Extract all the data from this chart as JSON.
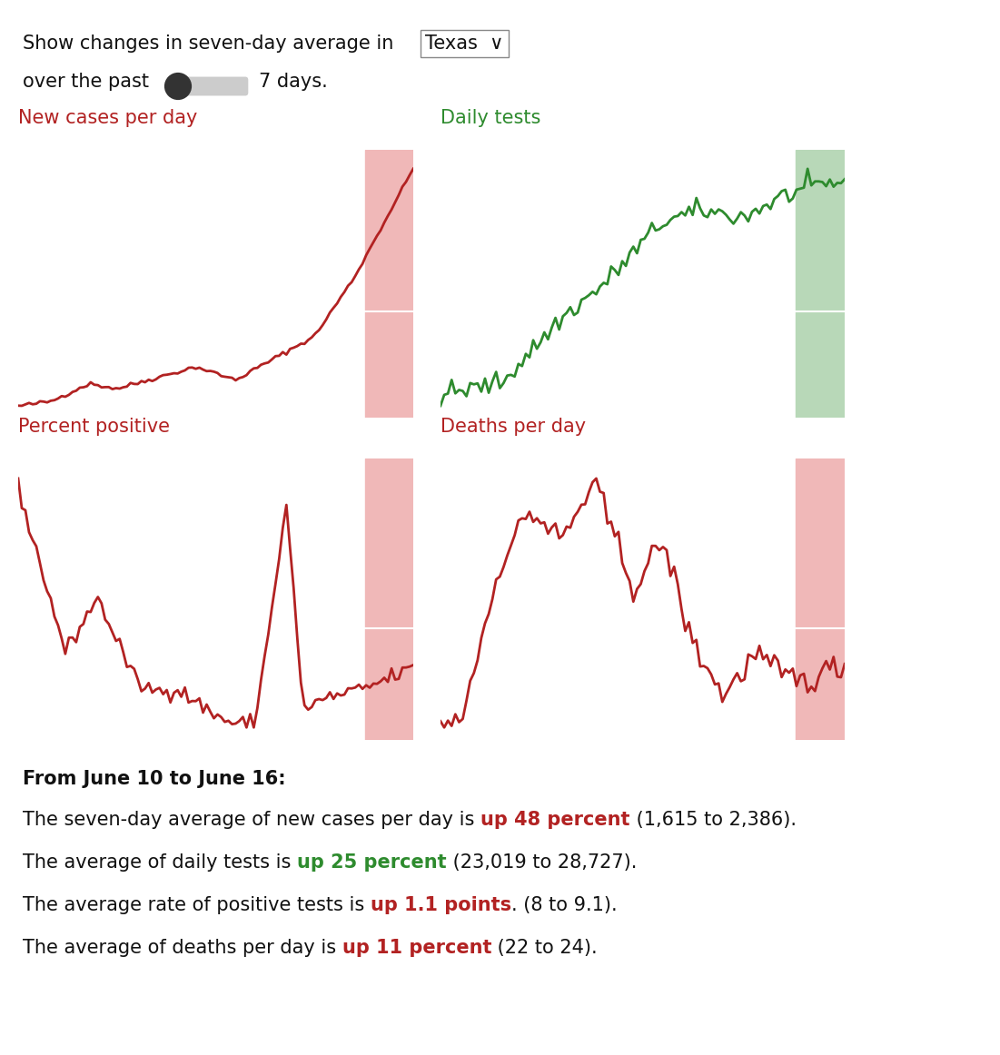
{
  "title_line1": "Show changes in seven-day average in",
  "state": "Texas",
  "slider_text": "over the past",
  "days_text": "7 days.",
  "chart_titles": [
    "New cases per day",
    "Daily tests",
    "Percent positive",
    "Deaths per day"
  ],
  "chart_colors": [
    "#b22222",
    "#2e8b2e",
    "#b22222",
    "#b22222"
  ],
  "chart_bg_colors": [
    "#fad4d4",
    "#d4ead4",
    "#fad4d4",
    "#fad4d4"
  ],
  "chart_highlight_colors": [
    "#f0b8b8",
    "#b8d8b8",
    "#f0b8b8",
    "#f0b8b8"
  ],
  "from_date": "From June 10 to June 16:",
  "stat_lines": [
    {
      "prefix": "The seven-day average of new cases per day is ",
      "highlight": "up 48 percent",
      "suffix": " (1,615 to 2,386).",
      "highlight_color": "#b22222"
    },
    {
      "prefix": "The average of daily tests is ",
      "highlight": "up 25 percent",
      "suffix": " (23,019 to 28,727).",
      "highlight_color": "#2e8b2e"
    },
    {
      "prefix": "The average rate of positive tests is ",
      "highlight": "up 1.1 points",
      "suffix": ". (8 to 9.1).",
      "highlight_color": "#b22222"
    },
    {
      "prefix": "The average of deaths per day is ",
      "highlight": "up 11 percent",
      "suffix": " (22 to 24).",
      "highlight_color": "#b22222"
    }
  ],
  "background_color": "#ffffff",
  "ui_fontsize": 15,
  "title_fontsize": 15,
  "stat_fontsize": 15
}
